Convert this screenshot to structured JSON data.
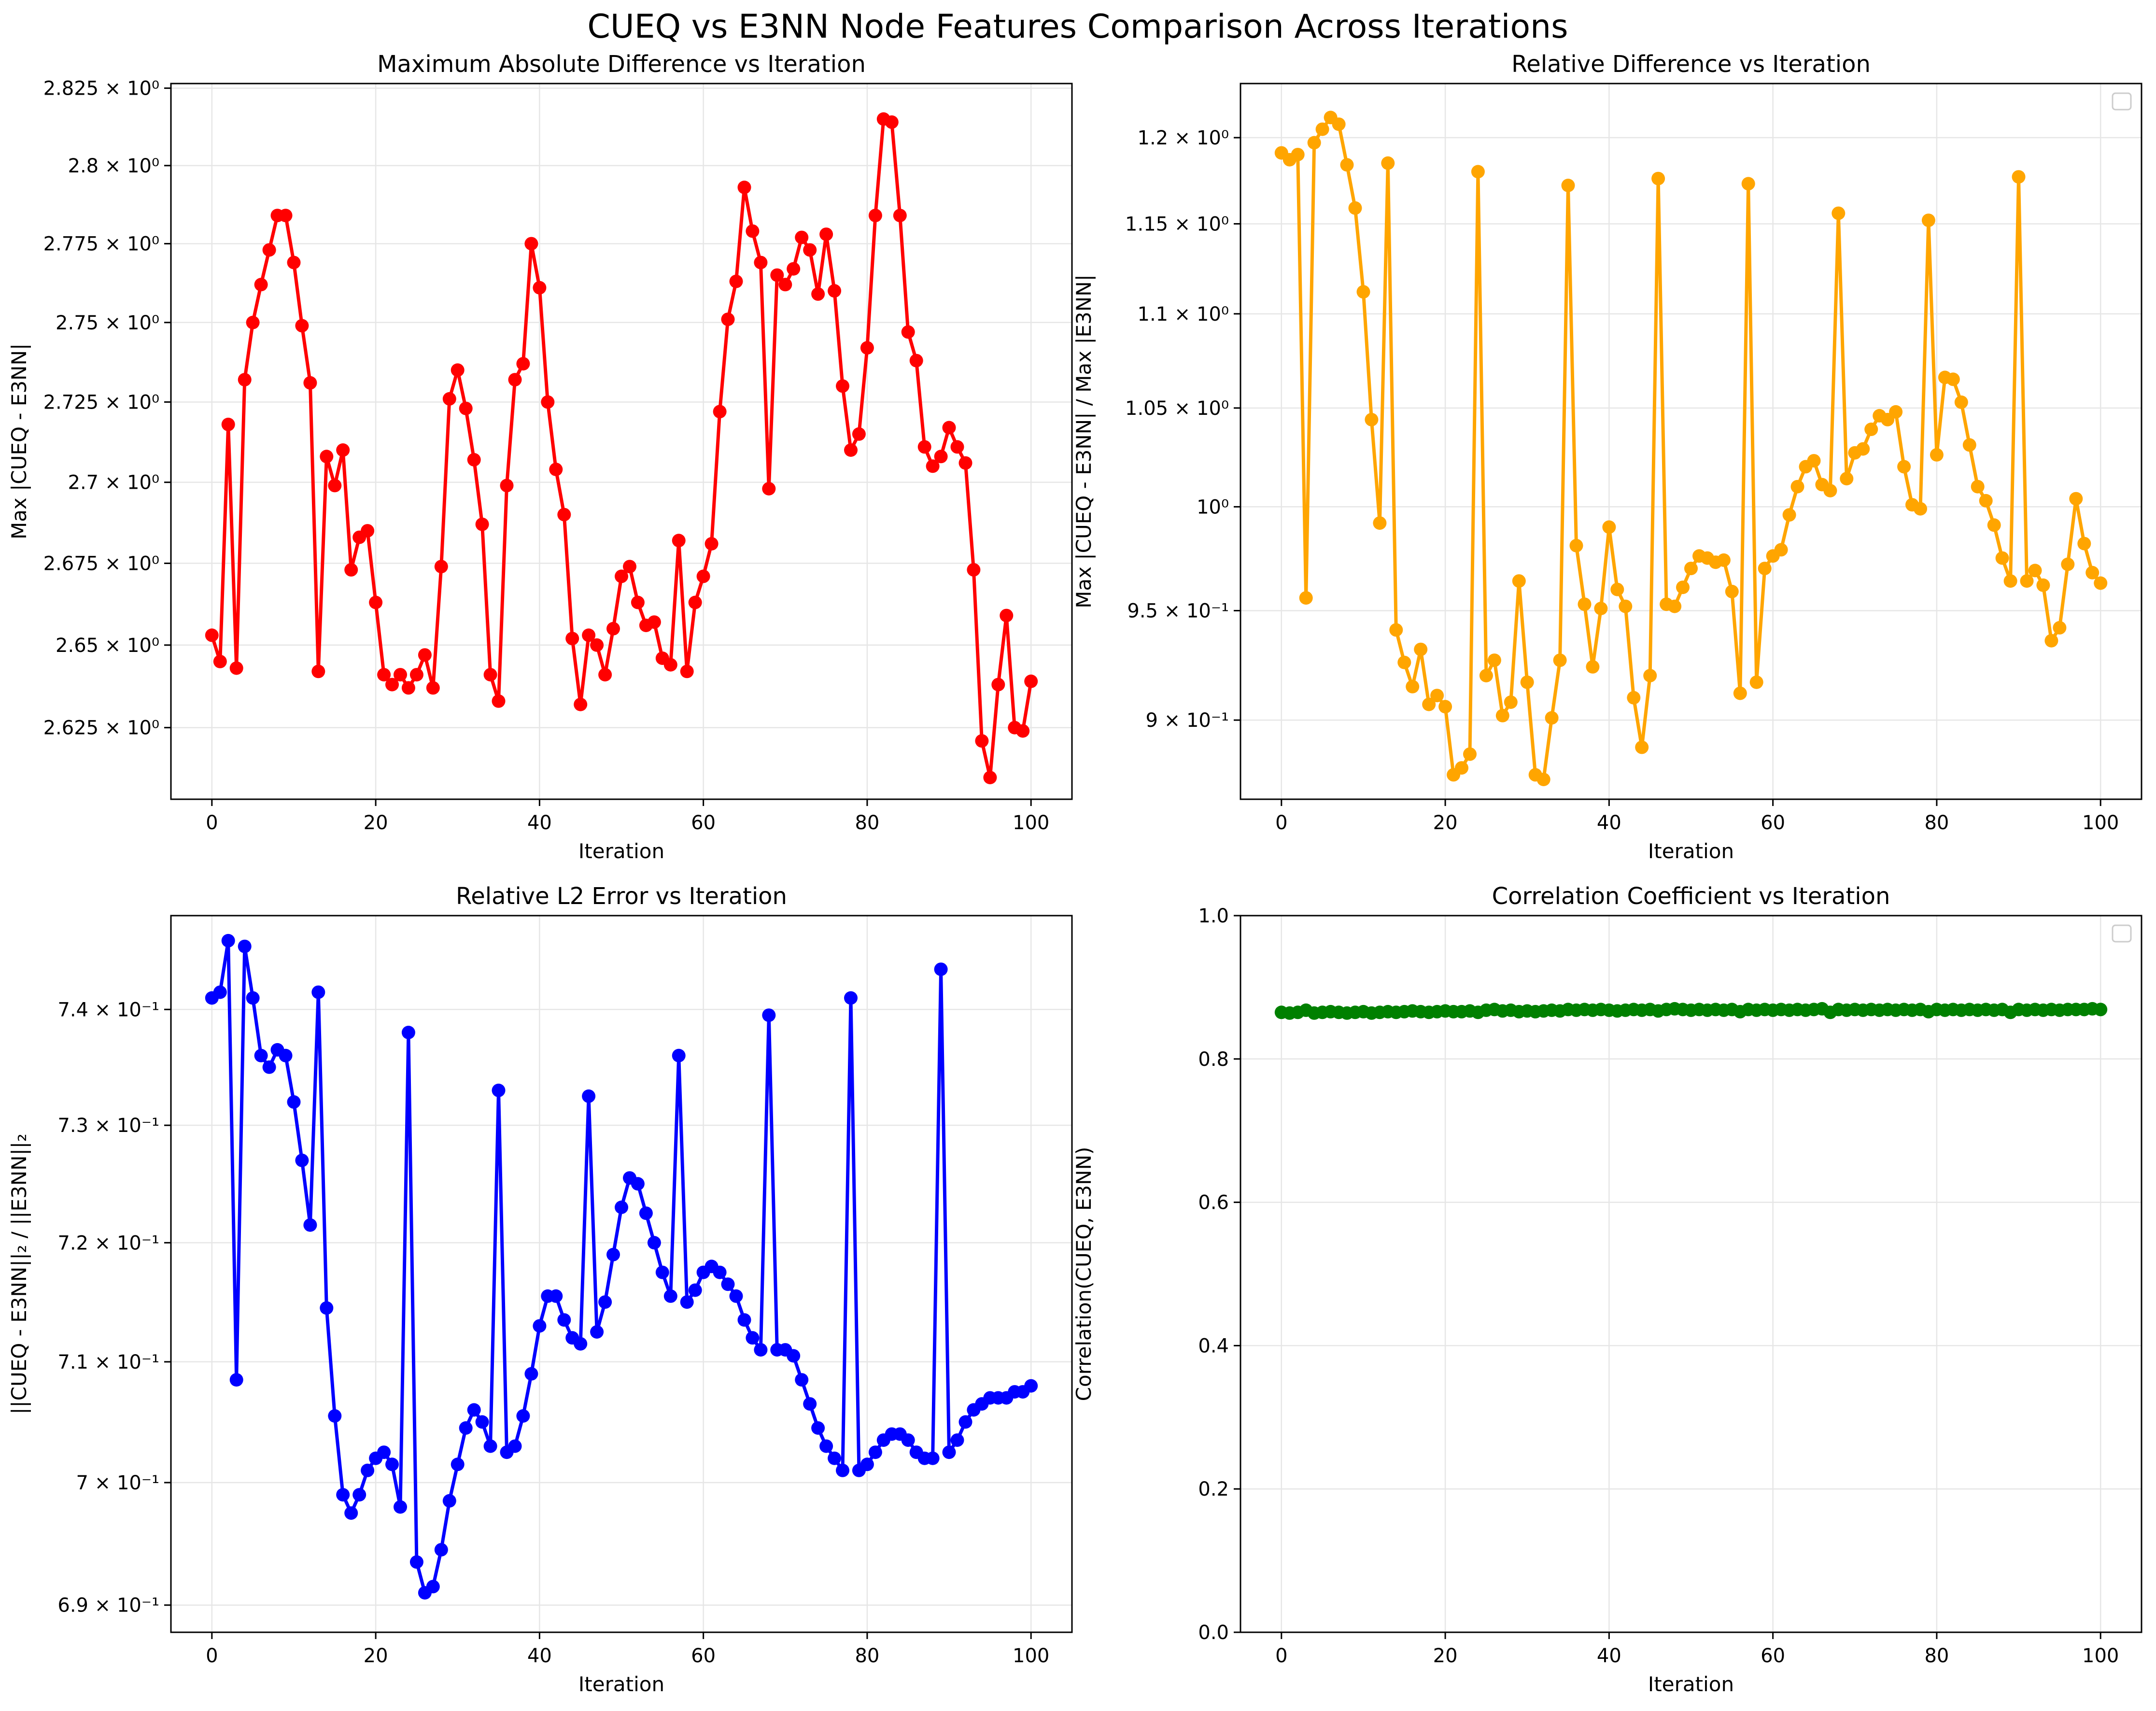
{
  "figure": {
    "suptitle": "CUEQ vs E3NN Node Features Comparison Across Iterations"
  },
  "chart_data": [
    {
      "type": "line",
      "title": "Maximum Absolute Difference vs Iteration",
      "xlabel": "Iteration",
      "ylabel": "Max |CUEQ - E3NN|",
      "yscale": "log",
      "xlim": [
        -5,
        105
      ],
      "ylim": [
        2.6035,
        2.8265
      ],
      "xticks": [
        0,
        20,
        40,
        60,
        80,
        100
      ],
      "yticks": [
        {
          "value": 2.625,
          "label": "2.625 × 10⁰"
        },
        {
          "value": 2.65,
          "label": "2.65 × 10⁰"
        },
        {
          "value": 2.675,
          "label": "2.675 × 10⁰"
        },
        {
          "value": 2.7,
          "label": "2.7 × 10⁰"
        },
        {
          "value": 2.725,
          "label": "2.725 × 10⁰"
        },
        {
          "value": 2.75,
          "label": "2.75 × 10⁰"
        },
        {
          "value": 2.775,
          "label": "2.775 × 10⁰"
        },
        {
          "value": 2.8,
          "label": "2.8 × 10⁰"
        },
        {
          "value": 2.825,
          "label": "2.825 × 10⁰"
        }
      ],
      "grid": true,
      "legend": null,
      "color": "#ff0000",
      "series": [
        {
          "values": [
            2.653,
            2.645,
            2.718,
            2.643,
            2.732,
            2.75,
            2.762,
            2.773,
            2.784,
            2.784,
            2.769,
            2.749,
            2.731,
            2.642,
            2.708,
            2.699,
            2.71,
            2.673,
            2.683,
            2.685,
            2.663,
            2.641,
            2.638,
            2.641,
            2.637,
            2.641,
            2.647,
            2.637,
            2.674,
            2.726,
            2.735,
            2.723,
            2.707,
            2.687,
            2.641,
            2.633,
            2.699,
            2.732,
            2.737,
            2.775,
            2.761,
            2.725,
            2.704,
            2.69,
            2.652,
            2.632,
            2.653,
            2.65,
            2.641,
            2.655,
            2.671,
            2.674,
            2.663,
            2.656,
            2.657,
            2.646,
            2.644,
            2.682,
            2.642,
            2.663,
            2.671,
            2.681,
            2.722,
            2.751,
            2.763,
            2.793,
            2.779,
            2.769,
            2.698,
            2.765,
            2.762,
            2.767,
            2.777,
            2.773,
            2.759,
            2.778,
            2.76,
            2.73,
            2.71,
            2.715,
            2.742,
            2.784,
            2.815,
            2.814,
            2.784,
            2.747,
            2.738,
            2.711,
            2.705,
            2.708,
            2.717,
            2.711,
            2.706,
            2.673,
            2.621,
            2.61,
            2.638,
            2.659,
            2.625,
            2.624,
            2.639
          ]
        }
      ]
    },
    {
      "type": "line",
      "title": "Relative Difference vs Iteration",
      "xlabel": "Iteration",
      "ylabel": "Max |CUEQ - E3NN| / Max |E3NN|",
      "yscale": "log",
      "xlim": [
        -5,
        105
      ],
      "ylim": [
        0.8655,
        1.2325
      ],
      "xticks": [
        0,
        20,
        40,
        60,
        80,
        100
      ],
      "yticks": [
        {
          "value": 0.9,
          "label": "9 × 10⁻¹"
        },
        {
          "value": 0.95,
          "label": "9.5 × 10⁻¹"
        },
        {
          "value": 1.0,
          "label": "10⁰"
        },
        {
          "value": 1.05,
          "label": "1.05 × 10⁰"
        },
        {
          "value": 1.1,
          "label": "1.1 × 10⁰"
        },
        {
          "value": 1.15,
          "label": "1.15 × 10⁰"
        },
        {
          "value": 1.2,
          "label": "1.2 × 10⁰"
        }
      ],
      "grid": true,
      "legend": "top-right (empty)",
      "color": "#ffa500",
      "series": [
        {
          "values": [
            1.191,
            1.187,
            1.19,
            0.956,
            1.197,
            1.205,
            1.212,
            1.208,
            1.184,
            1.159,
            1.112,
            1.044,
            0.992,
            1.185,
            0.941,
            0.926,
            0.915,
            0.932,
            0.907,
            0.911,
            0.906,
            0.876,
            0.879,
            0.885,
            1.18,
            0.92,
            0.927,
            0.902,
            0.908,
            0.964,
            0.917,
            0.876,
            0.874,
            0.901,
            0.927,
            1.172,
            0.981,
            0.953,
            0.924,
            0.951,
            0.99,
            0.96,
            0.952,
            0.91,
            0.888,
            0.92,
            1.176,
            0.953,
            0.952,
            0.961,
            0.97,
            0.976,
            0.975,
            0.973,
            0.974,
            0.959,
            0.912,
            1.173,
            0.917,
            0.97,
            0.976,
            0.979,
            0.996,
            1.01,
            1.02,
            1.023,
            1.011,
            1.008,
            1.156,
            1.014,
            1.027,
            1.029,
            1.039,
            1.046,
            1.044,
            1.048,
            1.02,
            1.001,
            0.999,
            1.152,
            1.026,
            1.066,
            1.065,
            1.053,
            1.031,
            1.01,
            1.003,
            0.991,
            0.975,
            0.964,
            1.177,
            0.964,
            0.969,
            0.962,
            0.936,
            0.942,
            0.972,
            1.004,
            0.982,
            0.968,
            0.963
          ]
        }
      ]
    },
    {
      "type": "line",
      "title": "Relative L2 Error vs Iteration",
      "xlabel": "Iteration",
      "ylabel": "||CUEQ - E3NN||₂ / ||E3NN||₂",
      "yscale": "log",
      "xlim": [
        -5,
        105
      ],
      "ylim": [
        0.6878,
        0.7482
      ],
      "xticks": [
        0,
        20,
        40,
        60,
        80,
        100
      ],
      "yticks": [
        {
          "value": 0.69,
          "label": "6.9 × 10⁻¹"
        },
        {
          "value": 0.7,
          "label": "7 × 10⁻¹"
        },
        {
          "value": 0.71,
          "label": "7.1 × 10⁻¹"
        },
        {
          "value": 0.72,
          "label": "7.2 × 10⁻¹"
        },
        {
          "value": 0.73,
          "label": "7.3 × 10⁻¹"
        },
        {
          "value": 0.74,
          "label": "7.4 × 10⁻¹"
        }
      ],
      "grid": true,
      "legend": null,
      "color": "#0000ff",
      "series": [
        {
          "values": [
            0.741,
            0.7415,
            0.746,
            0.7085,
            0.7455,
            0.741,
            0.736,
            0.735,
            0.7365,
            0.736,
            0.732,
            0.727,
            0.7215,
            0.7415,
            0.7145,
            0.7055,
            0.699,
            0.6975,
            0.699,
            0.701,
            0.702,
            0.7025,
            0.7015,
            0.698,
            0.738,
            0.6935,
            0.691,
            0.6915,
            0.6945,
            0.6985,
            0.7015,
            0.7045,
            0.706,
            0.705,
            0.703,
            0.733,
            0.7025,
            0.703,
            0.7055,
            0.709,
            0.713,
            0.7155,
            0.7155,
            0.7135,
            0.712,
            0.7115,
            0.7325,
            0.7125,
            0.715,
            0.719,
            0.723,
            0.7255,
            0.725,
            0.7225,
            0.72,
            0.7175,
            0.7155,
            0.736,
            0.715,
            0.716,
            0.7175,
            0.718,
            0.7175,
            0.7165,
            0.7155,
            0.7135,
            0.712,
            0.711,
            0.7395,
            0.711,
            0.711,
            0.7105,
            0.7085,
            0.7065,
            0.7045,
            0.703,
            0.702,
            0.701,
            0.741,
            0.701,
            0.7015,
            0.7025,
            0.7035,
            0.704,
            0.704,
            0.7035,
            0.7025,
            0.702,
            0.702,
            0.7435,
            0.7025,
            0.7035,
            0.705,
            0.706,
            0.7065,
            0.707,
            0.707,
            0.707,
            0.7075,
            0.7075,
            0.708
          ]
        }
      ]
    },
    {
      "type": "line",
      "title": "Correlation Coefficient vs Iteration",
      "xlabel": "Iteration",
      "ylabel": "Correlation(CUEQ, E3NN)",
      "yscale": "linear",
      "xlim": [
        -5,
        105
      ],
      "ylim": [
        0,
        1
      ],
      "xticks": [
        0,
        20,
        40,
        60,
        80,
        100
      ],
      "yticks": [
        {
          "value": 0.0,
          "label": "0.0"
        },
        {
          "value": 0.2,
          "label": "0.2"
        },
        {
          "value": 0.4,
          "label": "0.4"
        },
        {
          "value": 0.6,
          "label": "0.6"
        },
        {
          "value": 0.8,
          "label": "0.8"
        },
        {
          "value": 1.0,
          "label": "1.0"
        }
      ],
      "grid": true,
      "legend": "top-right (empty)",
      "color": "#008000",
      "series": [
        {
          "values": [
            0.865,
            0.864,
            0.865,
            0.868,
            0.864,
            0.865,
            0.866,
            0.865,
            0.864,
            0.865,
            0.866,
            0.864,
            0.865,
            0.866,
            0.865,
            0.866,
            0.867,
            0.866,
            0.865,
            0.866,
            0.867,
            0.866,
            0.866,
            0.867,
            0.865,
            0.868,
            0.869,
            0.867,
            0.868,
            0.866,
            0.867,
            0.866,
            0.867,
            0.868,
            0.867,
            0.869,
            0.868,
            0.869,
            0.868,
            0.869,
            0.868,
            0.867,
            0.868,
            0.869,
            0.868,
            0.869,
            0.867,
            0.869,
            0.87,
            0.869,
            0.868,
            0.869,
            0.868,
            0.869,
            0.868,
            0.869,
            0.866,
            0.869,
            0.868,
            0.869,
            0.868,
            0.869,
            0.868,
            0.869,
            0.868,
            0.869,
            0.87,
            0.865,
            0.869,
            0.868,
            0.869,
            0.868,
            0.869,
            0.868,
            0.869,
            0.868,
            0.869,
            0.868,
            0.869,
            0.866,
            0.869,
            0.868,
            0.869,
            0.868,
            0.869,
            0.868,
            0.869,
            0.868,
            0.869,
            0.865,
            0.869,
            0.868,
            0.869,
            0.868,
            0.869,
            0.868,
            0.869,
            0.869,
            0.869,
            0.87,
            0.869
          ]
        }
      ]
    }
  ]
}
